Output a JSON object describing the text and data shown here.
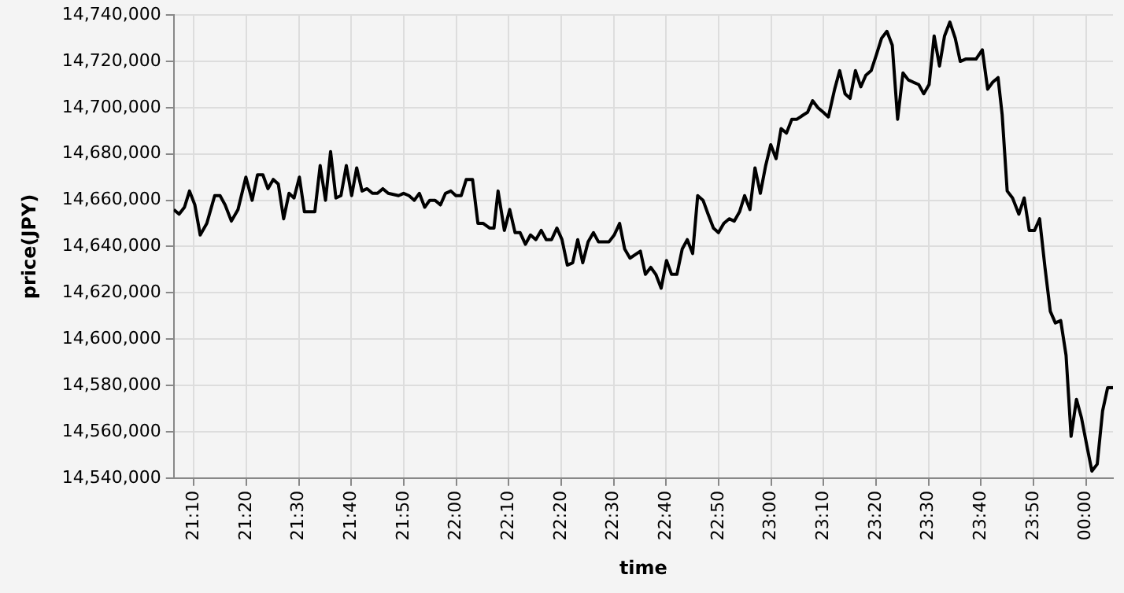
{
  "chart_data": {
    "type": "line",
    "xlabel": "time",
    "ylabel": "price(JPY)",
    "grid": true,
    "legend": false,
    "marker": "none",
    "line_style": "solid",
    "xlim": [
      21.103,
      24.086
    ],
    "xticks": [
      {
        "value": 21.1667,
        "label": "21:10"
      },
      {
        "value": 21.3333,
        "label": "21:20"
      },
      {
        "value": 21.5,
        "label": "21:30"
      },
      {
        "value": 21.6667,
        "label": "21:40"
      },
      {
        "value": 21.8333,
        "label": "21:50"
      },
      {
        "value": 22,
        "label": "22:00"
      },
      {
        "value": 22.1667,
        "label": "22:10"
      },
      {
        "value": 22.3333,
        "label": "22:20"
      },
      {
        "value": 22.5,
        "label": "22:30"
      },
      {
        "value": 22.6667,
        "label": "22:40"
      },
      {
        "value": 22.8333,
        "label": "22:50"
      },
      {
        "value": 23,
        "label": "23:00"
      },
      {
        "value": 23.1667,
        "label": "23:10"
      },
      {
        "value": 23.3333,
        "label": "23:20"
      },
      {
        "value": 23.5,
        "label": "23:30"
      },
      {
        "value": 23.6667,
        "label": "23:40"
      },
      {
        "value": 23.8333,
        "label": "23:50"
      },
      {
        "value": 24,
        "label": "00:00"
      }
    ],
    "ylim": [
      14540000,
      14740000
    ],
    "yticks": [
      {
        "value": 14540000,
        "label": "14,540,000"
      },
      {
        "value": 14560000,
        "label": "14,560,000"
      },
      {
        "value": 14580000,
        "label": "14,580,000"
      },
      {
        "value": 14600000,
        "label": "14,600,000"
      },
      {
        "value": 14620000,
        "label": "14,620,000"
      },
      {
        "value": 14640000,
        "label": "14,640,000"
      },
      {
        "value": 14660000,
        "label": "14,660,000"
      },
      {
        "value": 14680000,
        "label": "14,680,000"
      },
      {
        "value": 14700000,
        "label": "14,700,000"
      },
      {
        "value": 14720000,
        "label": "14,720,000"
      },
      {
        "value": 14740000,
        "label": "14,740,000"
      }
    ],
    "series": [
      {
        "color": "#000000",
        "x": [
          21.103,
          21.12,
          21.137,
          21.153,
          21.17,
          21.187,
          21.208,
          21.233,
          21.25,
          21.266,
          21.286,
          21.307,
          21.332,
          21.352,
          21.369,
          21.386,
          21.402,
          21.419,
          21.435,
          21.452,
          21.469,
          21.485,
          21.502,
          21.518,
          21.551,
          21.568,
          21.585,
          21.601,
          21.618,
          21.634,
          21.651,
          21.668,
          21.684,
          21.701,
          21.717,
          21.734,
          21.75,
          21.767,
          21.784,
          21.817,
          21.833,
          21.85,
          21.867,
          21.883,
          21.9,
          21.916,
          21.933,
          21.95,
          21.966,
          21.983,
          21.999,
          22.016,
          22.032,
          22.052,
          22.069,
          22.086,
          22.106,
          22.12,
          22.133,
          22.153,
          22.17,
          22.187,
          22.203,
          22.22,
          22.236,
          22.253,
          22.27,
          22.286,
          22.303,
          22.32,
          22.336,
          22.353,
          22.37,
          22.386,
          22.402,
          22.419,
          22.436,
          22.452,
          22.485,
          22.502,
          22.519,
          22.535,
          22.552,
          22.585,
          22.601,
          22.618,
          22.634,
          22.651,
          22.668,
          22.684,
          22.701,
          22.718,
          22.734,
          22.751,
          22.767,
          22.784,
          22.8,
          22.817,
          22.833,
          22.85,
          22.867,
          22.883,
          22.9,
          22.916,
          22.933,
          22.949,
          22.966,
          22.983,
          22.999,
          23.016,
          23.032,
          23.049,
          23.066,
          23.082,
          23.104,
          23.116,
          23.132,
          23.149,
          23.166,
          23.182,
          23.202,
          23.218,
          23.235,
          23.251,
          23.268,
          23.285,
          23.301,
          23.318,
          23.335,
          23.351,
          23.368,
          23.385,
          23.402,
          23.419,
          23.436,
          23.452,
          23.469,
          23.485,
          23.502,
          23.518,
          23.535,
          23.551,
          23.568,
          23.585,
          23.601,
          23.618,
          23.634,
          23.651,
          23.671,
          23.688,
          23.704,
          23.721,
          23.734,
          23.75,
          23.767,
          23.787,
          23.804,
          23.82,
          23.837,
          23.853,
          23.87,
          23.887,
          23.903,
          23.92,
          23.937,
          23.953,
          23.97,
          23.986,
          24.003,
          24.019,
          24.036,
          24.053,
          24.069,
          24.086
        ],
        "values": [
          14656000,
          14654000,
          14657000,
          14664000,
          14658000,
          14645000,
          14650000,
          14662000,
          14662000,
          14658000,
          14651000,
          14656000,
          14670000,
          14660000,
          14671000,
          14671000,
          14665000,
          14669000,
          14667000,
          14652000,
          14663000,
          14661000,
          14670000,
          14655000,
          14655000,
          14675000,
          14660000,
          14681000,
          14661000,
          14662000,
          14675000,
          14662000,
          14674000,
          14664000,
          14665000,
          14663000,
          14663000,
          14665000,
          14663000,
          14662000,
          14663000,
          14662000,
          14660000,
          14663000,
          14657000,
          14660000,
          14660000,
          14658000,
          14663000,
          14664000,
          14662000,
          14662000,
          14669000,
          14669000,
          14650000,
          14650000,
          14648000,
          14648000,
          14664000,
          14647000,
          14656000,
          14646000,
          14646000,
          14641000,
          14645000,
          14643000,
          14647000,
          14643000,
          14643000,
          14648000,
          14643000,
          14632000,
          14633000,
          14643000,
          14633000,
          14642000,
          14646000,
          14642000,
          14642000,
          14645000,
          14650000,
          14639000,
          14635000,
          14638000,
          14628000,
          14631000,
          14628000,
          14622000,
          14634000,
          14628000,
          14628000,
          14639000,
          14643000,
          14637000,
          14662000,
          14660000,
          14654000,
          14648000,
          14646000,
          14650000,
          14652000,
          14651000,
          14655000,
          14662000,
          14656000,
          14674000,
          14663000,
          14675000,
          14684000,
          14678000,
          14691000,
          14689000,
          14695000,
          14695000,
          14697000,
          14698000,
          14703000,
          14700000,
          14698000,
          14696000,
          14708000,
          14716000,
          14706000,
          14704000,
          14716000,
          14709000,
          14714000,
          14716000,
          14723000,
          14730000,
          14733000,
          14727000,
          14695000,
          14715000,
          14712000,
          14711000,
          14710000,
          14706000,
          14710000,
          14731000,
          14718000,
          14731000,
          14737000,
          14730000,
          14720000,
          14721000,
          14721000,
          14721000,
          14725000,
          14708000,
          14711000,
          14713000,
          14697000,
          14664000,
          14661000,
          14654000,
          14661000,
          14647000,
          14647000,
          14652000,
          14631000,
          14612000,
          14607000,
          14608000,
          14593000,
          14558000,
          14574000,
          14566000,
          14554000,
          14543000,
          14546000,
          14569000,
          14579000,
          14579000
        ]
      }
    ]
  }
}
